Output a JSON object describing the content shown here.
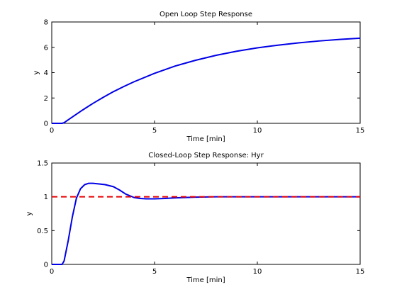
{
  "chart_data": [
    {
      "type": "line",
      "title": "Open Loop Step Response",
      "xlabel": "Time [min]",
      "ylabel": "y",
      "xlim": [
        0,
        15
      ],
      "ylim": [
        0,
        8
      ],
      "xticks": [
        0,
        5,
        10,
        15
      ],
      "yticks": [
        0,
        2,
        4,
        6,
        8
      ],
      "grid": false,
      "series": [
        {
          "color": "#0000e6",
          "style": "solid",
          "x": [
            0,
            0.5,
            0.6,
            1,
            1.5,
            2,
            2.5,
            3,
            3.5,
            4,
            5,
            6,
            7,
            8,
            9,
            10,
            11,
            12,
            13,
            14,
            15
          ],
          "y": [
            0,
            0,
            0.05,
            0.5,
            1.05,
            1.57,
            2.05,
            2.5,
            2.9,
            3.28,
            3.95,
            4.52,
            4.98,
            5.37,
            5.69,
            5.96,
            6.17,
            6.35,
            6.5,
            6.62,
            6.72
          ]
        }
      ]
    },
    {
      "type": "line",
      "title": "Closed-Loop Step Response: Hyr",
      "xlabel": "Time [min]",
      "ylabel": "y",
      "xlim": [
        0,
        15
      ],
      "ylim": [
        0,
        1.5
      ],
      "xticks": [
        0,
        5,
        10,
        15
      ],
      "yticks": [
        0,
        0.5,
        1,
        1.5
      ],
      "grid": false,
      "series": [
        {
          "color": "#0000e6",
          "style": "solid",
          "x": [
            0,
            0.5,
            0.6,
            0.8,
            1,
            1.2,
            1.4,
            1.6,
            1.8,
            2,
            2.3,
            2.6,
            3,
            3.3,
            3.6,
            4,
            4.3,
            4.6,
            5,
            5.5,
            6,
            6.5,
            7,
            8,
            9,
            10,
            11,
            12,
            13,
            14,
            15
          ],
          "y": [
            0,
            0,
            0.05,
            0.35,
            0.7,
            0.98,
            1.12,
            1.18,
            1.2,
            1.2,
            1.19,
            1.18,
            1.15,
            1.1,
            1.04,
            0.99,
            0.975,
            0.97,
            0.97,
            0.975,
            0.985,
            0.99,
            0.995,
            1.0,
            1.0,
            1.0,
            1.0,
            1.0,
            1.0,
            1.0,
            1.0
          ]
        },
        {
          "color": "#e60000",
          "style": "dashed",
          "x": [
            0,
            15
          ],
          "y": [
            1,
            1
          ]
        }
      ]
    }
  ]
}
